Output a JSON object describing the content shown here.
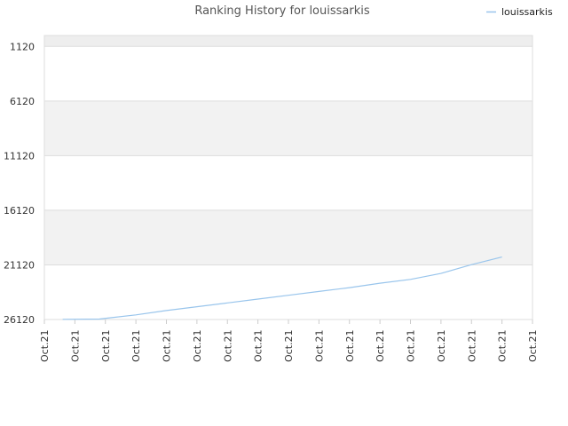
{
  "chart_data": {
    "type": "line",
    "title": "Ranking History for louissarkis",
    "legend_position": "top-right",
    "y_axis": {
      "reversed": true,
      "ylim": [
        26120,
        120
      ],
      "ticks": [
        1120,
        6120,
        11120,
        16120,
        21120,
        26120
      ]
    },
    "x_tick_labels": [
      "Oct.21",
      "Oct.21",
      "Oct.21",
      "Oct.21",
      "Oct.21",
      "Oct.21",
      "Oct.21",
      "Oct.21",
      "Oct.21",
      "Oct.21",
      "Oct.21",
      "Oct.21",
      "Oct.21",
      "Oct.21",
      "Oct.21",
      "Oct.21",
      "Oct.21"
    ],
    "series": [
      {
        "name": "louissarkis",
        "color": "#99c5ec",
        "x": [
          0.6,
          1.8,
          3,
          4,
          5,
          6,
          7,
          8,
          9,
          10,
          11,
          12,
          13,
          14,
          15
        ],
        "values": [
          26100,
          26080,
          25700,
          25300,
          24950,
          24600,
          24250,
          23900,
          23550,
          23200,
          22800,
          22450,
          21900,
          21100,
          20400
        ]
      }
    ],
    "colors": {
      "band_shaded": "#f2f2f2",
      "band_top": "#eeeeee",
      "gridline": "#dddddd",
      "axis": "#cccccc"
    }
  }
}
